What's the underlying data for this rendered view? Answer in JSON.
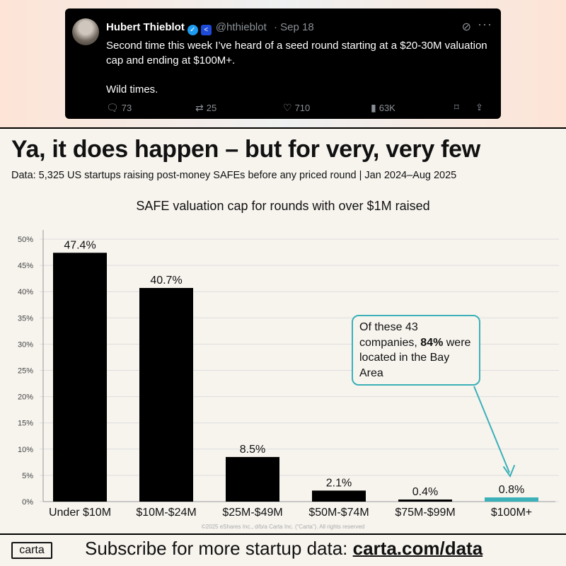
{
  "tweet": {
    "name": "Hubert Thieblot",
    "handle": "@hthieblot",
    "date": "· Sep 18",
    "body_line1": "Second time this week I’ve heard of a seed round starting at a $20-30M valuation cap and ending at $100M+.",
    "body_line2": "Wild times.",
    "replies": "73",
    "retweets": "25",
    "likes": "710",
    "views": "63K",
    "more": "···"
  },
  "headline": "Ya, it does happen – but for very, very few",
  "subhead": "Data: 5,325 US startups raising post-money SAFEs before any priced round | Jan 2024–Aug 2025",
  "callout": {
    "pre": "Of these 43 companies, ",
    "bold": "84%",
    "post": " were located in the Bay Area"
  },
  "copyright": "©2025 eShares Inc., d/b/a Carta Inc. (“Carta”). All rights reserved",
  "footer": {
    "logo": "carta",
    "text": "Subscribe for more startup data: ",
    "url": "carta.com/data"
  },
  "colors": {
    "bar": "#000000",
    "highlight": "#3bb0b8",
    "grid": "#dddddd"
  },
  "chart_data": {
    "type": "bar",
    "title": "SAFE valuation cap for rounds with over $1M raised",
    "categories": [
      "Under $10M",
      "$10M-$24M",
      "$25M-$49M",
      "$50M-$74M",
      "$75M-$99M",
      "$100M+"
    ],
    "values": [
      47.4,
      40.7,
      8.5,
      2.1,
      0.4,
      0.8
    ],
    "data_labels": [
      "47.4%",
      "40.7%",
      "8.5%",
      "2.1%",
      "0.4%",
      "0.8%"
    ],
    "yticks": [
      "0%",
      "5%",
      "10%",
      "15%",
      "20%",
      "25%",
      "30%",
      "35%",
      "40%",
      "45%",
      "50%"
    ],
    "ylim": [
      0,
      50
    ],
    "highlight_index": 5,
    "grid": true,
    "legend": "none"
  }
}
